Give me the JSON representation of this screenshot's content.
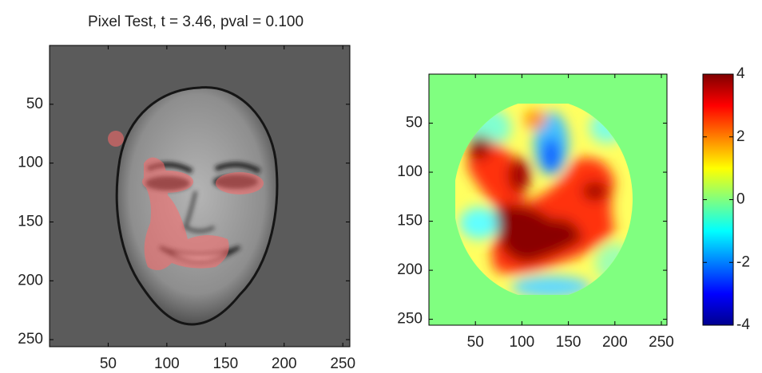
{
  "chart_data": [
    {
      "type": "image",
      "title": "Pixel Test, t = 3.46, pval = 0.100",
      "xlim": [
        0,
        256
      ],
      "ylim": [
        256,
        0
      ],
      "xticks": [
        50,
        100,
        150,
        200,
        250
      ],
      "yticks": [
        50,
        100,
        150,
        200,
        250
      ]
    },
    {
      "type": "heatmap",
      "colormap": "jet",
      "xlim": [
        0,
        256
      ],
      "ylim": [
        256,
        0
      ],
      "xticks": [
        50,
        100,
        150,
        200,
        250
      ],
      "yticks": [
        50,
        100,
        150,
        200,
        250
      ],
      "colorbar": {
        "lim": [
          -4,
          4
        ],
        "ticks": [
          -4,
          -2,
          0,
          2,
          4
        ]
      }
    }
  ]
}
